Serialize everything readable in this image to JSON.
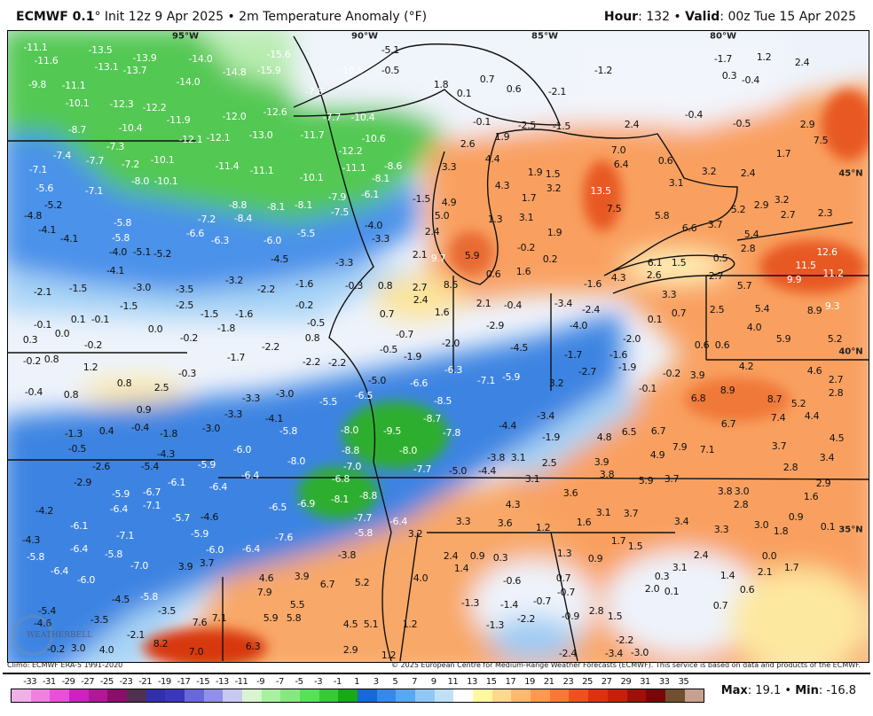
{
  "header": {
    "model": "ECMWF 0.1",
    "deg": "°",
    "init": " Init 12z 9 Apr 2025 • 2m Temperature Anomaly (°F)",
    "hour_label": "Hour",
    "hour": ": 132 • ",
    "valid_label": "Valid",
    "valid": ": 00z Tue 15 Apr 2025"
  },
  "graticule": [
    "95°W",
    "90°W",
    "85°W",
    "80°W",
    "45°N",
    "40°N",
    "35°N"
  ],
  "footer": {
    "climo": "Climo: ECMWF ERA-5 1991-2020",
    "copyright": "© 2025 European Centre for Medium-Range Weather Forecasts (ECMWF). This service is based on data and products of the ECMWF.",
    "max_label": "Max",
    "max": ": 19.1 • ",
    "min_label": "Min",
    "min": ": -16.8"
  },
  "logo": "WEATHERBELL",
  "colorbar": {
    "ticks": [
      "-33",
      "-31",
      "-29",
      "-27",
      "-25",
      "-23",
      "-21",
      "-19",
      "-17",
      "-15",
      "-13",
      "-11",
      "-9",
      "-7",
      "-5",
      "-3",
      "-1",
      "1",
      "3",
      "5",
      "7",
      "9",
      "11",
      "13",
      "15",
      "17",
      "19",
      "21",
      "23",
      "25",
      "27",
      "29",
      "31",
      "33",
      "35"
    ],
    "colors": [
      "#f0b0e8",
      "#f080e0",
      "#e850d8",
      "#d020c0",
      "#b01898",
      "#881068",
      "#503050",
      "#3030a8",
      "#3838b8",
      "#6868d8",
      "#9090e8",
      "#c8c8f0",
      "#d8f4d0",
      "#a8f0a0",
      "#88e880",
      "#58e058",
      "#38c838",
      "#18a818",
      "#1868d8",
      "#3888e8",
      "#58a8f0",
      "#90c8f4",
      "#c0e0f8",
      "#ffffff",
      "#fff8a0",
      "#ffd890",
      "#ffb870",
      "#ff9850",
      "#f87838",
      "#f05020",
      "#e03010",
      "#c82008",
      "#a01008",
      "#780808",
      "#705030",
      "#c8a090"
    ]
  },
  "labels": [
    "-11.1",
    "-11.6",
    "-9.8",
    "-13.5",
    "-13.1",
    "-13.7",
    "-13.9",
    "-14.0",
    "-14.8",
    "-15.9",
    "-15.6",
    "-14.0",
    "-11.1",
    "-10.1",
    "-12.3",
    "-12.2",
    "-11.9",
    "-12.0",
    "-12.1",
    "-12.1",
    "-13.0",
    "-12.6",
    "-8.7",
    "-10.4",
    "-7.3",
    "-7.4",
    "-7.7",
    "-7.2",
    "-10.1",
    "-11.4",
    "-11.1",
    "-7.1",
    "-8.0",
    "-10.1",
    "-5.6",
    "-7.1",
    "-5.2",
    "-8.8",
    "-8.1",
    "-8.4",
    "-7.2",
    "-6.6",
    "-6.3",
    "-6.0",
    "-4.8",
    "-4.1",
    "-5.8",
    "-5.8",
    "-5.5",
    "-10.9",
    "-0.5",
    "-5.1",
    "-7.8",
    "1.8",
    "0.1",
    "0.7",
    "0.6",
    "-2.1",
    "-7.7",
    "-10.4",
    "-11.7",
    "-10.6",
    "-12.2",
    "-11.1",
    "-8.6",
    "-8.1",
    "-10.1",
    "-7.9",
    "-7.5",
    "-8.1",
    "-6.1",
    "-1.5",
    "-4.0",
    "-3.3",
    "4.9",
    "5.0",
    "2.4",
    "4.4",
    "4.3",
    "1.9",
    "1.5",
    "3.2",
    "1.7",
    "1.3",
    "3.1",
    "1.9",
    "-2.5",
    "-1.5",
    "1.9",
    "2.6",
    "3.3",
    "-0.1",
    "-1.2",
    "-1.7",
    "0.3",
    "-0.4",
    "1.2",
    "2.4",
    "-0.4",
    "2.4",
    "-0.5",
    "2.9",
    "7.5",
    "1.7",
    "7.0",
    "6.4",
    "0.6",
    "3.2",
    "2.4",
    "13.5",
    "7.5",
    "5.8",
    "6.6",
    "3.7",
    "5.2",
    "2.9",
    "3.2",
    "2.7",
    "2.3",
    "5.4",
    "3.1",
    "-4.1",
    "-4.0",
    "-5.1",
    "-5.2",
    "-4.1",
    "-2.1",
    "-1.5",
    "-3.0",
    "-3.5",
    "-2.5",
    "-3.2",
    "-2.2",
    "-4.5",
    "-1.5",
    "-1.5",
    "-1.6",
    "0.1",
    "-0.1",
    "-0.1",
    "0.0",
    "0.3",
    "-1.8",
    "-0.2",
    "0.0",
    "-0.2",
    "-2.2",
    "-1.7",
    "-0.2",
    "0.8",
    "1.2",
    "0.8",
    "2.5",
    "-0.3",
    "-0.4",
    "0.8",
    "0.9",
    "-3.3",
    "-3.0",
    "-3.3",
    "-4.1",
    "-5.8",
    "-1.3",
    "0.4",
    "-0.4",
    "-1.8",
    "-3.0",
    "2.1",
    "9.7",
    "5.9",
    "-0.2",
    "0.2",
    "0.6",
    "1.6",
    "-3.3",
    "-1.6",
    "-0.3",
    "0.8",
    "2.7",
    "8.5",
    "2.4",
    "1.6",
    "2.1",
    "-0.4",
    "-0.2",
    "-0.5",
    "0.8",
    "0.7",
    "-0.7",
    "-0.5",
    "-1.9",
    "-2.0",
    "-2.9",
    "-4.5",
    "-2.2",
    "-2.2",
    "-5.0",
    "-6.6",
    "-6.5",
    "-5.5",
    "-6.3",
    "-7.1",
    "-5.9",
    "-8.5",
    "-8.7",
    "-7.8",
    "-9.5",
    "-8.0",
    "-1.6",
    "-3.4",
    "-4.0",
    "-2.4",
    "-1.7",
    "-2.7",
    "3.2",
    "-3.4",
    "-4.4",
    "-1.9",
    "6.1",
    "1.5",
    "2.6",
    "4.3",
    "0.5",
    "2.8",
    "2.7",
    "3.3",
    "0.1",
    "0.7",
    "2.5",
    "5.7",
    "5.4",
    "4.0",
    "5.9",
    "5.2",
    "8.9",
    "9.3",
    "11.5",
    "12.6",
    "9.9",
    "11.2",
    "0.6",
    "0.6",
    "-2.0",
    "-1.6",
    "-1.9",
    "-0.2",
    "-0.1",
    "3.9",
    "4.2",
    "4.6",
    "2.7",
    "2.8",
    "8.9",
    "6.8",
    "8.7",
    "5.2",
    "7.4",
    "4.4",
    "6.7",
    "6.7",
    "6.5",
    "4.8",
    "4.5",
    "-0.5",
    "-4.3",
    "-2.6",
    "-5.4",
    "-2.9",
    "-5.9",
    "-6.7",
    "-6.4",
    "-7.1",
    "-4.2",
    "-6.1",
    "-5.7",
    "-4.6",
    "-5.9",
    "-6.1",
    "-7.1",
    "-4.3",
    "-6.4",
    "-5.8",
    "-5.8",
    "-7.0",
    "-6.4",
    "-6.0",
    "-4.5",
    "-5.8",
    "-3.5",
    "-5.4",
    "-4.6",
    "-3.5",
    "-0.2",
    "-2.1",
    "3.0",
    "4.0",
    "8.2",
    "7.0",
    "7.6",
    "7.1",
    "3.7",
    "3.9",
    "-5.9",
    "-6.0",
    "-8.0",
    "-6.4",
    "-6.4",
    "-6.5",
    "-6.0",
    "-6.4",
    "-7.6",
    "4.6",
    "7.9",
    "5.9",
    "5.8",
    "5.5",
    "6.3",
    "-8.8",
    "-8.0",
    "-7.0",
    "-6.8",
    "-7.7",
    "-5.0",
    "-4.4",
    "-3.8",
    "3.1",
    "2.5",
    "3.1",
    "3.6",
    "4.3",
    "3.3",
    "3.6",
    "1.2",
    "-6.9",
    "-8.1",
    "-8.8",
    "-7.7",
    "-6.4",
    "-5.8",
    "3.2",
    "-3.8",
    "2.4",
    "0.9",
    "0.3",
    "1.4",
    "3.9",
    "6.7",
    "5.2",
    "4.0",
    "-0.6",
    "-1.3",
    "-1.4",
    "-2.2",
    "-0.7",
    "-1.3",
    "1.2",
    "4.5",
    "5.1",
    "2.9",
    "1.2",
    "1.3",
    "0.7",
    "-0.7",
    "-0.9",
    "-2.4",
    "7.9",
    "4.9",
    "7.1",
    "3.7",
    "3.4",
    "3.9",
    "3.8",
    "5.9",
    "3.7",
    "2.8",
    "2.9",
    "3.8",
    "3.0",
    "2.8",
    "1.6",
    "3.1",
    "3.7",
    "3.4",
    "3.3",
    "3.0",
    "1.8",
    "0.9",
    "0.1",
    "1.6",
    "1.7",
    "1.5",
    "2.4",
    "0.0",
    "2.1",
    "1.7",
    "0.9",
    "0.3",
    "3.1",
    "1.4",
    "2.0",
    "0.1",
    "0.6",
    "0.7",
    "2.8",
    "1.5",
    "-2.2",
    "-3.4",
    "-3.0"
  ]
}
